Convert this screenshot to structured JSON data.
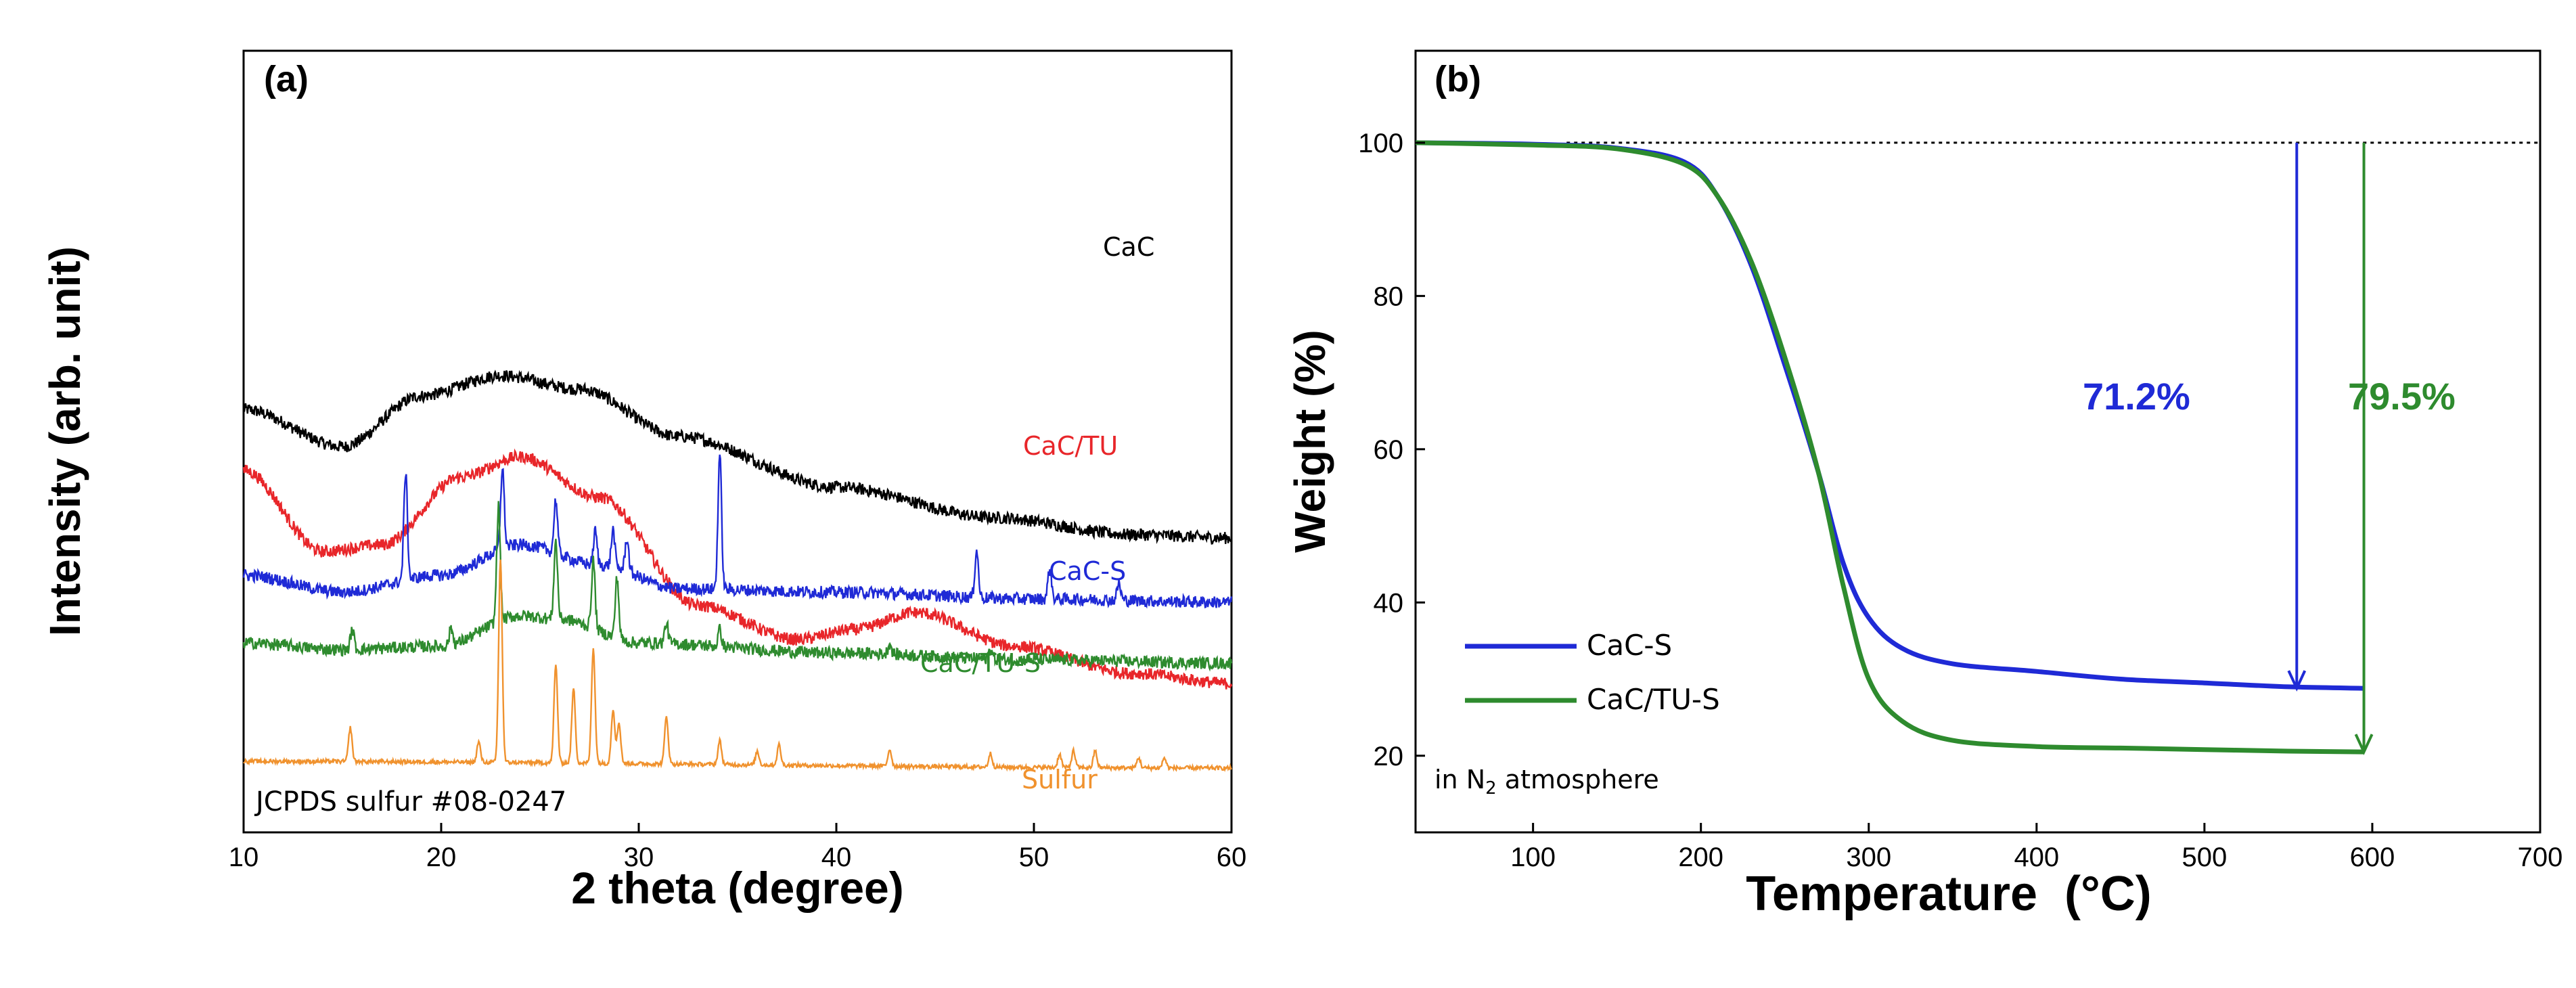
{
  "chart_data": [
    {
      "panel": "(a)",
      "type": "line",
      "xlabel": "2 theta (degree)",
      "ylabel": "Intensity (arb. unit)",
      "xlim": [
        10,
        60
      ],
      "x_ticks": [
        10,
        20,
        30,
        40,
        50,
        60
      ],
      "y_ticks_shown": false,
      "annotation": "JCPDS sulfur #08-0247",
      "series": [
        {
          "name": "CaC",
          "color": "#000000",
          "offset": 560,
          "base": [
            [
              10,
              0
            ],
            [
              15,
              -55
            ],
            [
              19,
              20
            ],
            [
              23,
              50
            ],
            [
              27,
              30
            ],
            [
              32,
              -40
            ],
            [
              40,
              -115
            ],
            [
              48,
              -160
            ],
            [
              55,
              -185
            ],
            [
              60,
              -190
            ]
          ],
          "peaks": []
        },
        {
          "name": "CaC/TU",
          "color": "#e8262a",
          "offset": 420,
          "base": [
            [
              10,
              50
            ],
            [
              14,
              -70
            ],
            [
              17,
              -60
            ],
            [
              21,
              40
            ],
            [
              24,
              70
            ],
            [
              28,
              10
            ],
            [
              33,
              -150
            ],
            [
              38,
              -200
            ],
            [
              41,
              -185
            ],
            [
              44,
              -160
            ],
            [
              49,
              -210
            ],
            [
              55,
              -250
            ],
            [
              60,
              -265
            ]
          ],
          "peaks": []
        },
        {
          "name": "CaC-S",
          "color": "#1f2ad6",
          "offset": 300,
          "base": [
            [
              10,
              15
            ],
            [
              15,
              -10
            ],
            [
              20,
              15
            ],
            [
              24,
              60
            ],
            [
              28,
              30
            ],
            [
              32,
              -5
            ],
            [
              40,
              -10
            ],
            [
              50,
              -20
            ],
            [
              60,
              -25
            ]
          ],
          "peaks": [
            [
              18.2,
              160
            ],
            [
              23.1,
              120
            ],
            [
              25.8,
              80
            ],
            [
              27.8,
              50
            ],
            [
              28.7,
              55
            ],
            [
              29.4,
              50
            ],
            [
              34.1,
              200
            ],
            [
              47.1,
              70
            ],
            [
              50.8,
              45
            ],
            [
              54.3,
              25
            ]
          ]
        },
        {
          "name": "CaC/TU-S",
          "color": "#2e8b2e",
          "offset": 200,
          "base": [
            [
              10,
              15
            ],
            [
              15,
              5
            ],
            [
              20,
              10
            ],
            [
              24,
              55
            ],
            [
              26,
              50
            ],
            [
              30,
              15
            ],
            [
              40,
              0
            ],
            [
              50,
              -10
            ],
            [
              60,
              -15
            ]
          ],
          "peaks": [
            [
              15.5,
              30
            ],
            [
              20.5,
              25
            ],
            [
              22.9,
              170
            ],
            [
              25.8,
              115
            ],
            [
              27.7,
              100
            ],
            [
              28.9,
              90
            ],
            [
              31.4,
              30
            ],
            [
              34.1,
              25
            ],
            [
              42.7,
              15
            ],
            [
              47.8,
              15
            ]
          ]
        },
        {
          "name": "Sulfur",
          "color": "#f0922e",
          "offset": 40,
          "base": [
            [
              10,
              0
            ],
            [
              60,
              -10
            ]
          ],
          "peaks": [
            [
              15.4,
              50
            ],
            [
              21.9,
              30
            ],
            [
              23.0,
              300
            ],
            [
              25.8,
              145
            ],
            [
              26.7,
              110
            ],
            [
              27.7,
              170
            ],
            [
              28.7,
              80
            ],
            [
              29.0,
              60
            ],
            [
              31.4,
              70
            ],
            [
              34.1,
              35
            ],
            [
              36.0,
              20
            ],
            [
              37.1,
              30
            ],
            [
              42.7,
              25
            ],
            [
              47.8,
              20
            ],
            [
              51.3,
              20
            ],
            [
              52.0,
              25
            ],
            [
              53.1,
              25
            ],
            [
              55.3,
              15
            ],
            [
              56.6,
              15
            ]
          ]
        }
      ]
    },
    {
      "panel": "(b)",
      "type": "line",
      "xlabel": "Temperature",
      "xlabel_unit": "(°C)",
      "ylabel": "Weight (%)",
      "xlim": [
        30,
        700
      ],
      "ylim": [
        10,
        112
      ],
      "x_ticks": [
        100,
        200,
        300,
        400,
        500,
        600,
        700
      ],
      "y_ticks": [
        20,
        40,
        60,
        80,
        100
      ],
      "reference_line_y": 100,
      "atmosphere_note": {
        "prefix": "in N",
        "subscript": "2",
        "suffix": " atmosphere"
      },
      "series": [
        {
          "name": "CaC-S",
          "color": "#1f2ad6",
          "x": [
            30,
            100,
            150,
            190,
            210,
            230,
            250,
            270,
            285,
            300,
            320,
            350,
            400,
            450,
            500,
            550,
            595
          ],
          "y": [
            100,
            99.8,
            99.3,
            97.5,
            93,
            84,
            71,
            57,
            45,
            38,
            34,
            32,
            31,
            30,
            29.5,
            29,
            28.8
          ]
        },
        {
          "name": "CaC/TU-S",
          "color": "#2e8b2e",
          "x": [
            30,
            100,
            150,
            190,
            210,
            230,
            250,
            270,
            285,
            300,
            320,
            350,
            400,
            450,
            500,
            550,
            595
          ],
          "y": [
            100,
            99.7,
            99.2,
            97.2,
            93,
            84.5,
            72,
            57,
            42,
            30,
            24.5,
            22,
            21.2,
            21,
            20.8,
            20.6,
            20.5
          ]
        }
      ],
      "annotations": [
        {
          "label": "71.2%",
          "color": "#1f2ad6",
          "arrow_x": 555,
          "from_y": 100,
          "to_y": 28.8
        },
        {
          "label": "79.5%",
          "color": "#2e8b2e",
          "arrow_x": 595,
          "from_y": 100,
          "to_y": 20.5
        }
      ]
    }
  ]
}
